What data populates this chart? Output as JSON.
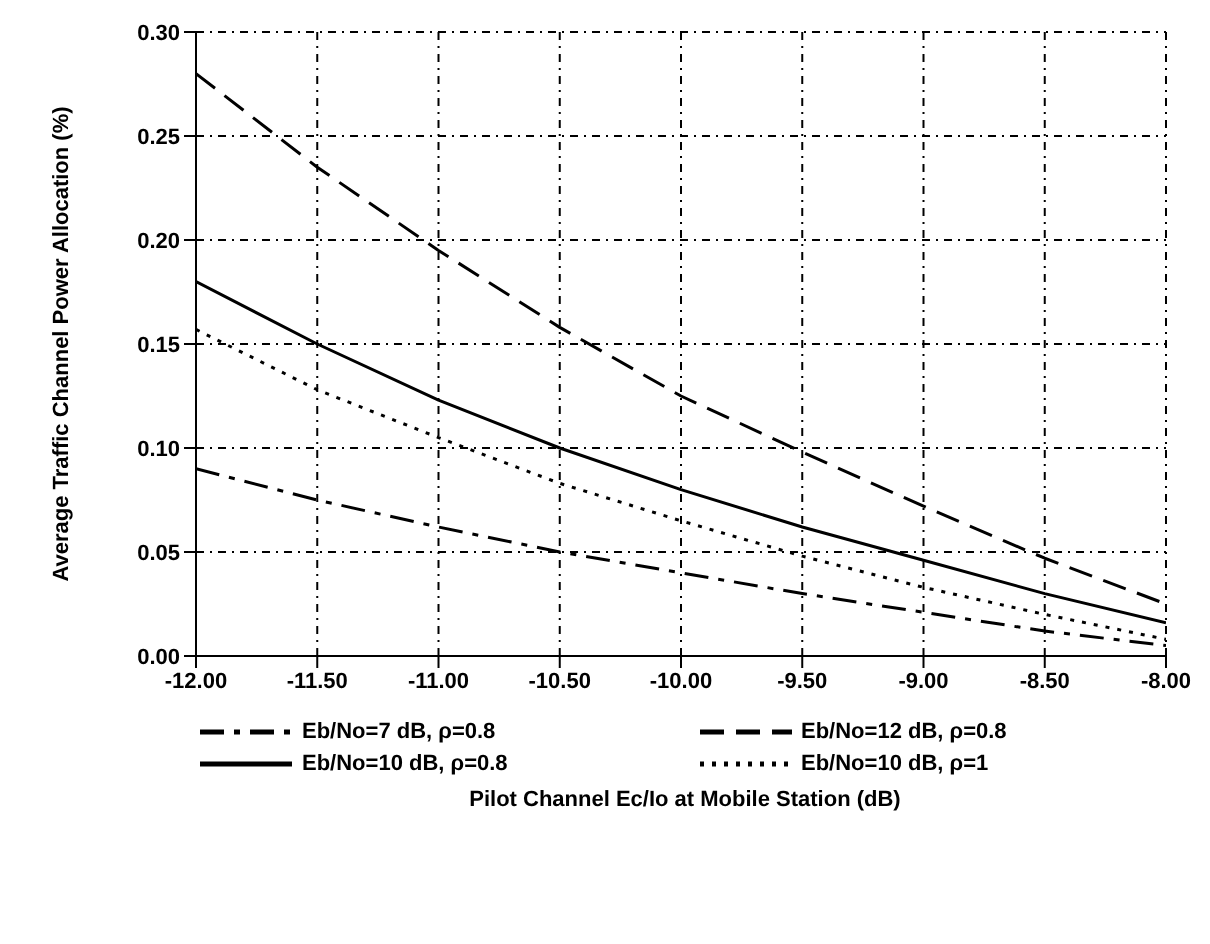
{
  "chart_data": {
    "type": "line",
    "xlabel": "Pilot Channel Ec/Io at Mobile Station (dB)",
    "ylabel": "Average Traffic Channel Power Allocation (%)",
    "x": [
      -12,
      -11.5,
      -11,
      -10.5,
      -10,
      -9.5,
      -9,
      -8.5,
      -8
    ],
    "series": [
      {
        "name": "Eb/No=7 dB, ρ=0.8",
        "color": "#000000",
        "line_style": "dashdot",
        "values": [
          0.09,
          0.075,
          0.062,
          0.05,
          0.04,
          0.03,
          0.021,
          0.012,
          0.005
        ]
      },
      {
        "name": "Eb/No=12 dB, ρ=0.8",
        "color": "#000000",
        "line_style": "dashed",
        "values": [
          0.28,
          0.235,
          0.195,
          0.158,
          0.125,
          0.098,
          0.072,
          0.047,
          0.025
        ]
      },
      {
        "name": "Eb/No=10 dB, ρ=0.8",
        "color": "#000000",
        "line_style": "solid",
        "values": [
          0.18,
          0.15,
          0.123,
          0.1,
          0.08,
          0.062,
          0.046,
          0.03,
          0.016
        ]
      },
      {
        "name": "Eb/No=10 dB, ρ=1",
        "color": "#000000",
        "line_style": "dotted",
        "values": [
          0.157,
          0.128,
          0.105,
          0.083,
          0.065,
          0.048,
          0.033,
          0.02,
          0.008
        ]
      }
    ],
    "xlim": [
      -12,
      -8
    ],
    "xticks": [
      {
        "value": -12,
        "label": "-12.00"
      },
      {
        "value": -11.5,
        "label": "-11.50"
      },
      {
        "value": -11,
        "label": "-11.00"
      },
      {
        "value": -10.5,
        "label": "-10.50"
      },
      {
        "value": -10,
        "label": "-10.00"
      },
      {
        "value": -9.5,
        "label": "-9.50"
      },
      {
        "value": -9,
        "label": "-9.00"
      },
      {
        "value": -8.5,
        "label": "-8.50"
      },
      {
        "value": -8,
        "label": "-8.00"
      }
    ],
    "ylim": [
      0,
      0.3
    ],
    "yticks": [
      {
        "value": 0,
        "label": "0.00"
      },
      {
        "value": 0.05,
        "label": "0.05"
      },
      {
        "value": 0.1,
        "label": "0.10"
      },
      {
        "value": 0.15,
        "label": "0.15"
      },
      {
        "value": 0.2,
        "label": "0.20"
      },
      {
        "value": 0.25,
        "label": "0.25"
      },
      {
        "value": 0.3,
        "label": "0.30"
      }
    ],
    "grid": true,
    "legend": "bottom",
    "marker": "none"
  }
}
